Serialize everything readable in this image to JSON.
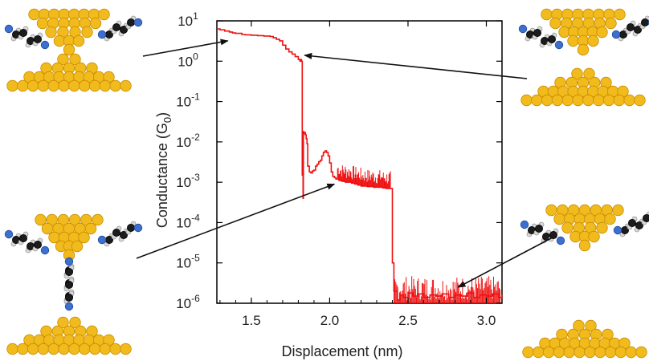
{
  "chart_data": {
    "type": "line",
    "title": "",
    "xlabel": "Displacement (nm)",
    "ylabel_main": "Conductance (G",
    "ylabel_sub": "0",
    "ylabel_end": ")",
    "xlim": [
      1.28,
      3.1
    ],
    "ylim_log10": [
      -6,
      1
    ],
    "yscale": "log",
    "grid": false,
    "x_ticks": [
      1.5,
      2.0,
      2.5,
      3.0
    ],
    "x_tick_labels": [
      "1.5",
      "2.0",
      "2.5",
      "3.0"
    ],
    "y_ticks": [
      {
        "base": "10",
        "exp": "1",
        "log": 1
      },
      {
        "base": "10",
        "exp": "0",
        "log": 0
      },
      {
        "base": "10",
        "exp": "-1",
        "log": -1
      },
      {
        "base": "10",
        "exp": "-2",
        "log": -2
      },
      {
        "base": "10",
        "exp": "-3",
        "log": -3
      },
      {
        "base": "10",
        "exp": "-4",
        "log": -4
      },
      {
        "base": "10",
        "exp": "-5",
        "log": -5
      },
      {
        "base": "10",
        "exp": "-6",
        "log": -6
      }
    ],
    "series": [
      {
        "color": "#ee1111",
        "x": [
          1.28,
          1.3,
          1.33,
          1.36,
          1.38,
          1.4,
          1.42,
          1.44,
          1.46,
          1.48,
          1.5,
          1.52,
          1.54,
          1.56,
          1.58,
          1.6,
          1.62,
          1.64,
          1.66,
          1.68,
          1.7,
          1.72,
          1.74,
          1.76,
          1.78,
          1.8,
          1.81,
          1.815,
          1.82,
          1.825,
          1.83,
          1.832,
          1.835,
          1.84,
          1.845,
          1.85,
          1.855,
          1.86,
          1.87,
          1.88,
          1.89,
          1.9,
          1.91,
          1.92,
          1.93,
          1.94,
          1.95,
          1.96,
          1.97,
          1.98,
          1.99,
          2.0,
          2.01,
          2.02,
          2.03,
          2.04,
          2.06,
          2.08,
          2.1,
          2.12,
          2.14,
          2.16,
          2.18,
          2.2,
          2.22,
          2.24,
          2.26,
          2.28,
          2.3,
          2.32,
          2.34,
          2.36,
          2.38,
          2.39,
          2.395,
          2.4,
          2.41,
          2.43,
          2.45,
          2.47,
          2.5,
          2.53,
          2.56,
          2.6,
          2.64,
          2.68,
          2.72,
          2.76,
          2.8,
          2.84,
          2.88,
          2.92,
          2.96,
          3.0,
          3.04,
          3.08,
          3.1
        ],
        "y": [
          6.3,
          6.0,
          5.6,
          5.3,
          5.0,
          4.9,
          4.9,
          4.6,
          4.5,
          4.5,
          4.4,
          4.4,
          4.3,
          4.3,
          4.2,
          4.2,
          4.1,
          3.8,
          3.5,
          3.2,
          2.5,
          2.0,
          1.7,
          1.5,
          1.3,
          1.1,
          1.0,
          1.1,
          1.0,
          0.0015,
          0.0004,
          0.018,
          0.016,
          0.017,
          0.015,
          0.012,
          0.009,
          0.0025,
          0.0018,
          0.0017,
          0.0019,
          0.002,
          0.0025,
          0.0028,
          0.0032,
          0.0035,
          0.0045,
          0.0055,
          0.006,
          0.0055,
          0.0045,
          0.003,
          0.0018,
          0.0014,
          0.0013,
          0.0012,
          0.0011,
          0.00105,
          0.001,
          0.001,
          0.00095,
          0.0009,
          0.00085,
          0.0008,
          0.0008,
          0.00078,
          0.00078,
          0.00075,
          0.00075,
          0.00075,
          0.00072,
          0.0007,
          0.0007,
          0.0007,
          0.0007,
          1e-05,
          2e-06,
          1.2e-06,
          1.6e-06,
          1.4e-06,
          1.8e-06,
          1.5e-06,
          1.7e-06,
          1.4e-06,
          1.6e-06,
          1.5e-06,
          1.7e-06,
          1.4e-06,
          1.6e-06,
          1.5e-06,
          1.8e-06,
          1.4e-06,
          1.6e-06,
          1.5e-06,
          1.7e-06,
          1.4e-06,
          1.6e-06
        ]
      }
    ],
    "annotations": [
      {
        "from_point": "top-left junction image",
        "to_x": 1.35,
        "to_y": 3.2
      },
      {
        "from_point": "top-right junction image",
        "to_x": 1.84,
        "to_y": 1.4
      },
      {
        "from_point": "bottom-left junction image",
        "to_x": 2.03,
        "to_y": 0.0009
      },
      {
        "from_point": "bottom-right junction image",
        "to_x": 2.82,
        "to_y": 2.5e-06
      }
    ]
  },
  "colors": {
    "trace": "#ee1111",
    "gold": "#f2bb1d",
    "gold_dark": "#c98d00",
    "carbon": "#1c1c1c",
    "hydrogen": "#d8d8d8",
    "nitrogen": "#3c6fd0"
  },
  "illustrations": [
    {
      "name": "molecular-junction-top-left",
      "icon": "gold-contact-molecules-icon"
    },
    {
      "name": "molecular-junction-top-right",
      "icon": "gold-contact-molecules-icon"
    },
    {
      "name": "molecular-junction-bottom-left",
      "icon": "gold-contact-molecules-icon"
    },
    {
      "name": "molecular-junction-bottom-right",
      "icon": "gold-contact-molecules-icon"
    }
  ]
}
